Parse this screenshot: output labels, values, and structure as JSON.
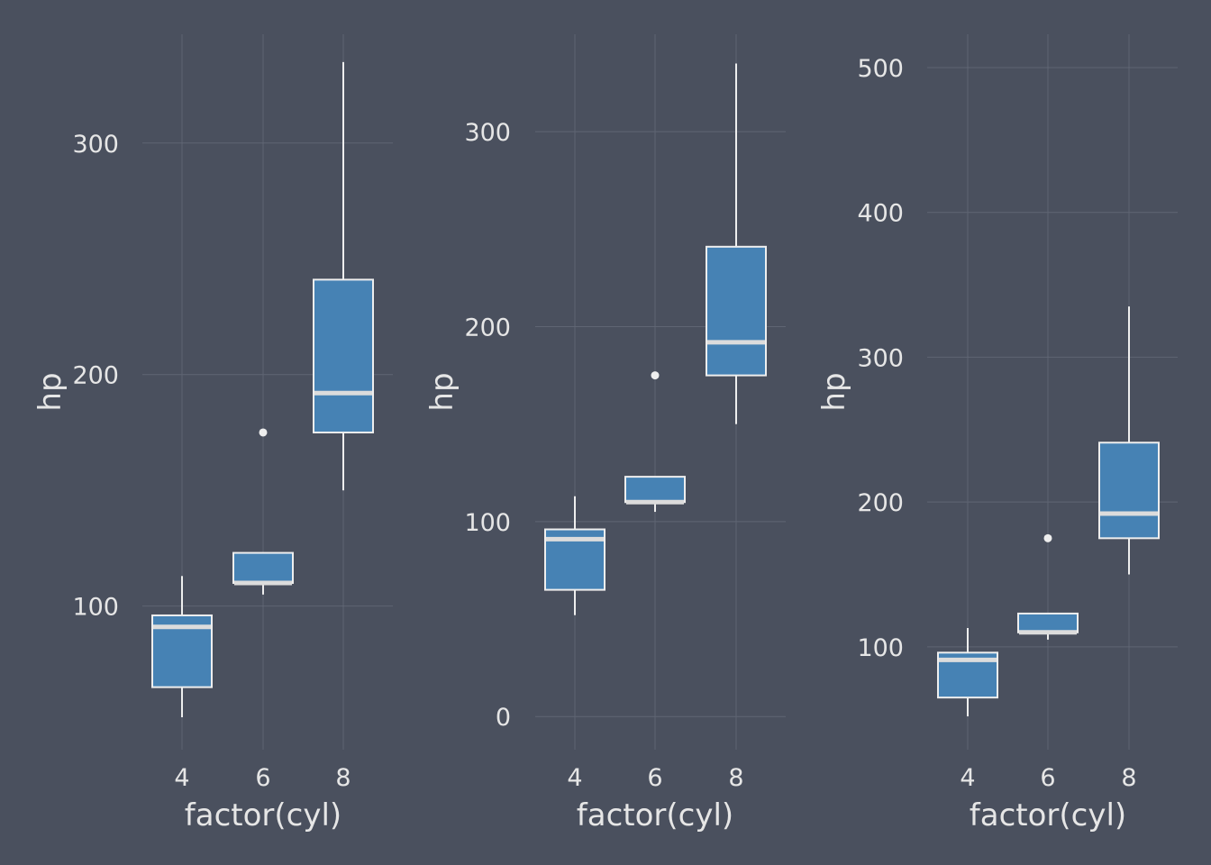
{
  "colors": {
    "background": "#4a505e",
    "box_fill": "#4682b4",
    "box_line": "#eeeeee",
    "text": "#e6e6e6",
    "grid": "#5f6573"
  },
  "chart_data": [
    {
      "type": "boxplot",
      "xlabel": "factor(cyl)",
      "ylabel": "hp",
      "categories": [
        "4",
        "6",
        "8"
      ],
      "ylim": [
        38,
        347
      ],
      "yticks": [
        100,
        200,
        300
      ],
      "boxes": [
        {
          "category": "4",
          "whisker_low": 52,
          "q1": 65,
          "median": 91,
          "q3": 96,
          "whisker_high": 113,
          "outliers": []
        },
        {
          "category": "6",
          "whisker_low": 105,
          "q1": 110,
          "median": 110,
          "q3": 123,
          "whisker_high": 123,
          "outliers": [
            175
          ]
        },
        {
          "category": "8",
          "whisker_low": 150,
          "q1": 175,
          "median": 192,
          "q3": 241,
          "whisker_high": 335,
          "outliers": []
        }
      ]
    },
    {
      "type": "boxplot",
      "xlabel": "factor(cyl)",
      "ylabel": "hp",
      "categories": [
        "4",
        "6",
        "8"
      ],
      "ylim": [
        -17,
        350
      ],
      "yticks": [
        0,
        100,
        200,
        300
      ],
      "boxes": [
        {
          "category": "4",
          "whisker_low": 52,
          "q1": 65,
          "median": 91,
          "q3": 96,
          "whisker_high": 113,
          "outliers": []
        },
        {
          "category": "6",
          "whisker_low": 105,
          "q1": 110,
          "median": 110,
          "q3": 123,
          "whisker_high": 123,
          "outliers": [
            175
          ]
        },
        {
          "category": "8",
          "whisker_low": 150,
          "q1": 175,
          "median": 192,
          "q3": 241,
          "whisker_high": 335,
          "outliers": []
        }
      ]
    },
    {
      "type": "boxplot",
      "xlabel": "factor(cyl)",
      "ylabel": "hp",
      "categories": [
        "4",
        "6",
        "8"
      ],
      "ylim": [
        29,
        523
      ],
      "yticks": [
        100,
        200,
        300,
        400,
        500
      ],
      "boxes": [
        {
          "category": "4",
          "whisker_low": 52,
          "q1": 65,
          "median": 91,
          "q3": 96,
          "whisker_high": 113,
          "outliers": []
        },
        {
          "category": "6",
          "whisker_low": 105,
          "q1": 110,
          "median": 110,
          "q3": 123,
          "whisker_high": 123,
          "outliers": [
            175
          ]
        },
        {
          "category": "8",
          "whisker_low": 150,
          "q1": 175,
          "median": 192,
          "q3": 241,
          "whisker_high": 335,
          "outliers": []
        }
      ]
    }
  ]
}
